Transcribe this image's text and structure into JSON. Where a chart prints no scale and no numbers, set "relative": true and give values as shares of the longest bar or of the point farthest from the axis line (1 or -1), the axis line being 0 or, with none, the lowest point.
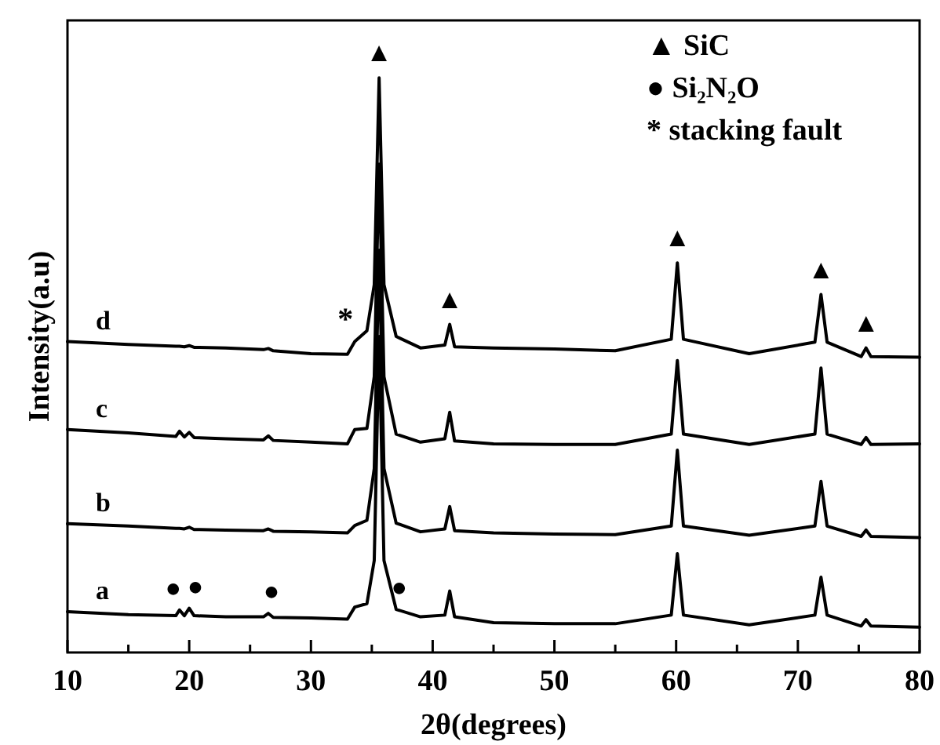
{
  "chart_data": {
    "type": "line",
    "relative": true,
    "xlabel": "2θ(degrees)",
    "ylabel": "Intensity(a.u)",
    "tick_labels": "x",
    "line_style": "solid",
    "marker": "none",
    "x": [
      10,
      15,
      18.9,
      19.2,
      19.6,
      20.0,
      20.4,
      23,
      26.1,
      26.5,
      26.9,
      30,
      33.0,
      33.6,
      34.6,
      35.2,
      35.6,
      36.0,
      37,
      39,
      41.0,
      41.4,
      41.8,
      45,
      50,
      55,
      59.6,
      60.1,
      60.6,
      66,
      71.4,
      71.9,
      72.4,
      75.2,
      75.6,
      76.0,
      80
    ],
    "xlim": [
      10,
      80
    ],
    "xticks": [
      10,
      {
        "value": 15,
        "label": null
      },
      20,
      {
        "value": 25,
        "label": null
      },
      30,
      {
        "value": 35,
        "label": null
      },
      40,
      {
        "value": 45,
        "label": null
      },
      50,
      {
        "value": 55,
        "label": null
      },
      60,
      {
        "value": 65,
        "label": null
      },
      70,
      {
        "value": 75,
        "label": null
      },
      80
    ],
    "series": [
      {
        "name": "a",
        "color": "#000000",
        "values": [
          0.071,
          0.066,
          0.064,
          0.074,
          0.064,
          0.077,
          0.064,
          0.062,
          0.062,
          0.068,
          0.061,
          0.06,
          0.058,
          0.079,
          0.085,
          0.16,
          0.55,
          0.16,
          0.075,
          0.062,
          0.065,
          0.107,
          0.062,
          0.052,
          0.05,
          0.05,
          0.065,
          0.172,
          0.065,
          0.048,
          0.065,
          0.131,
          0.065,
          0.046,
          0.057,
          0.046,
          0.044
        ]
      },
      {
        "name": "b",
        "color": "#000000",
        "values": [
          0.224,
          0.22,
          0.216,
          0.216,
          0.215,
          0.218,
          0.214,
          0.213,
          0.212,
          0.215,
          0.211,
          0.21,
          0.208,
          0.221,
          0.23,
          0.32,
          0.7,
          0.32,
          0.225,
          0.21,
          0.215,
          0.254,
          0.212,
          0.208,
          0.206,
          0.205,
          0.22,
          0.352,
          0.22,
          0.204,
          0.22,
          0.298,
          0.22,
          0.202,
          0.213,
          0.202,
          0.2
        ]
      },
      {
        "name": "c",
        "color": "#000000",
        "values": [
          0.388,
          0.382,
          0.376,
          0.385,
          0.375,
          0.383,
          0.374,
          0.372,
          0.37,
          0.377,
          0.369,
          0.366,
          0.363,
          0.388,
          0.39,
          0.48,
          0.85,
          0.48,
          0.38,
          0.366,
          0.372,
          0.418,
          0.368,
          0.363,
          0.362,
          0.362,
          0.38,
          0.508,
          0.38,
          0.362,
          0.38,
          0.495,
          0.38,
          0.362,
          0.374,
          0.362,
          0.363
        ]
      },
      {
        "name": "d",
        "color": "#000000",
        "values": [
          0.541,
          0.536,
          0.533,
          0.533,
          0.532,
          0.534,
          0.531,
          0.53,
          0.527,
          0.529,
          0.525,
          0.52,
          0.519,
          0.541,
          0.56,
          0.64,
          1.0,
          0.64,
          0.55,
          0.53,
          0.535,
          0.571,
          0.532,
          0.53,
          0.528,
          0.525,
          0.545,
          0.678,
          0.545,
          0.52,
          0.54,
          0.623,
          0.54,
          0.515,
          0.53,
          0.515,
          0.514
        ]
      }
    ],
    "annotations": [
      "▲ SiC",
      "● Si₂N₂O",
      "* stacking fault",
      {
        "text": "▲",
        "x": 35.6,
        "y": 1.0
      },
      {
        "text": "▲",
        "x": 41.4,
        "y": 0.571
      },
      {
        "text": "▲",
        "x": 60.1,
        "y": 0.678
      },
      {
        "text": "▲",
        "x": 71.9,
        "y": 0.623
      },
      {
        "text": "▲",
        "x": 75.6,
        "y": 0.53
      },
      {
        "text": "*",
        "x": 33.6,
        "y": 0.541
      },
      {
        "text": "●",
        "x": 19.2,
        "y": 0.074
      },
      {
        "text": "●",
        "x": 20.0,
        "y": 0.077
      },
      {
        "text": "●",
        "x": 26.5,
        "y": 0.068
      },
      {
        "text": "●",
        "x": 37,
        "y": 0.075
      }
    ]
  }
}
